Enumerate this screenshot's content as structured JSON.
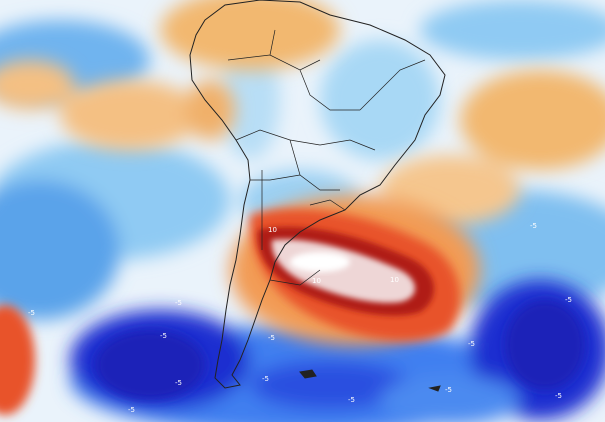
{
  "map": {
    "type": "temperature anomaly",
    "region": "South America and surrounding oceans",
    "colors": {
      "strong_cold": "#1f2fd0",
      "cold": "#3f7ff0",
      "cool": "#7fc3f2",
      "neutral": "#ffffff",
      "warm": "#f2b870",
      "hot": "#e8532a",
      "very_hot": "#b01a12",
      "extreme": "#f0dede",
      "land_outline": "#222222"
    },
    "contour_labels": {
      "pos_1": "10",
      "pos_2": "10",
      "pos_3": "10",
      "neg_1": "-5",
      "neg_2": "-5",
      "neg_3": "-5",
      "neg_4": "-5",
      "neg_5": "-5",
      "neg_6": "-5",
      "neg_7": "-5",
      "neg_8": "-5",
      "neg_9": "-5",
      "neg_10": "-5",
      "neg_11": "-5",
      "neg_12": "-5",
      "neg_13": "-5"
    }
  }
}
